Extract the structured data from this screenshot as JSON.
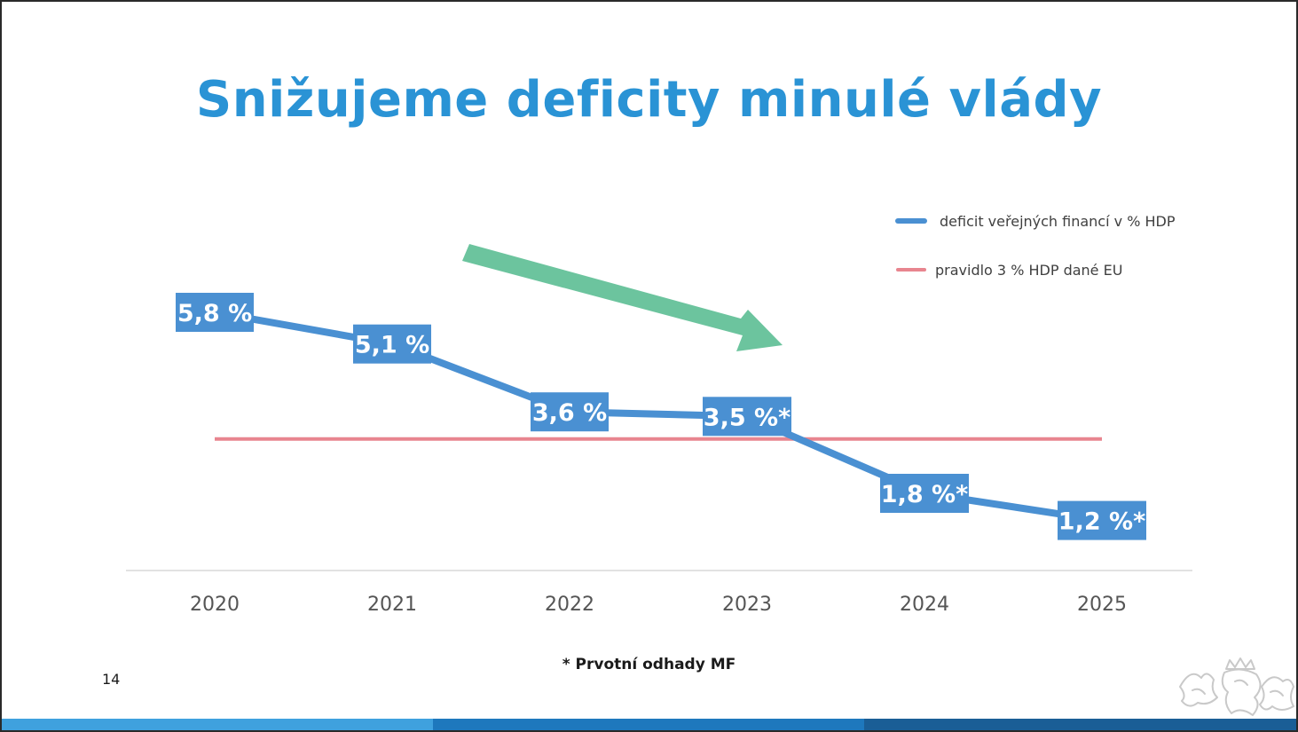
{
  "title": "Snižujeme deficity minulé vlády",
  "footnote": "* Prvotní odhady MF",
  "page_number": "14",
  "colors": {
    "title": "#2a93d5",
    "deficit_line": "#4a90d2",
    "eu_rule": "#e8858f",
    "trend_arrow": "#5fbf96",
    "axis_text": "#555555"
  },
  "chart_data": {
    "type": "line",
    "categories": [
      "2020",
      "2021",
      "2022",
      "2023",
      "2024",
      "2025"
    ],
    "series": [
      {
        "name": "deficit veřejných financí v % HDP",
        "values": [
          5.8,
          5.1,
          3.6,
          3.5,
          1.8,
          1.2
        ],
        "labels": [
          "5,8 %",
          "5,1 %",
          "3,6 %",
          "3,5 %*",
          "1,8 %*",
          "1,2 %*"
        ],
        "color": "#4a90d2"
      },
      {
        "name": "pravidlo 3 % HDP dané EU",
        "values": [
          3,
          3,
          3,
          3,
          3,
          3
        ],
        "color": "#e8858f"
      }
    ],
    "legend": [
      "deficit veřejných financí v % HDP",
      "pravidlo 3 % HDP dané EU"
    ],
    "legend_position": "top-right",
    "grid": false,
    "decorations": [
      "downward trend arrow"
    ]
  }
}
